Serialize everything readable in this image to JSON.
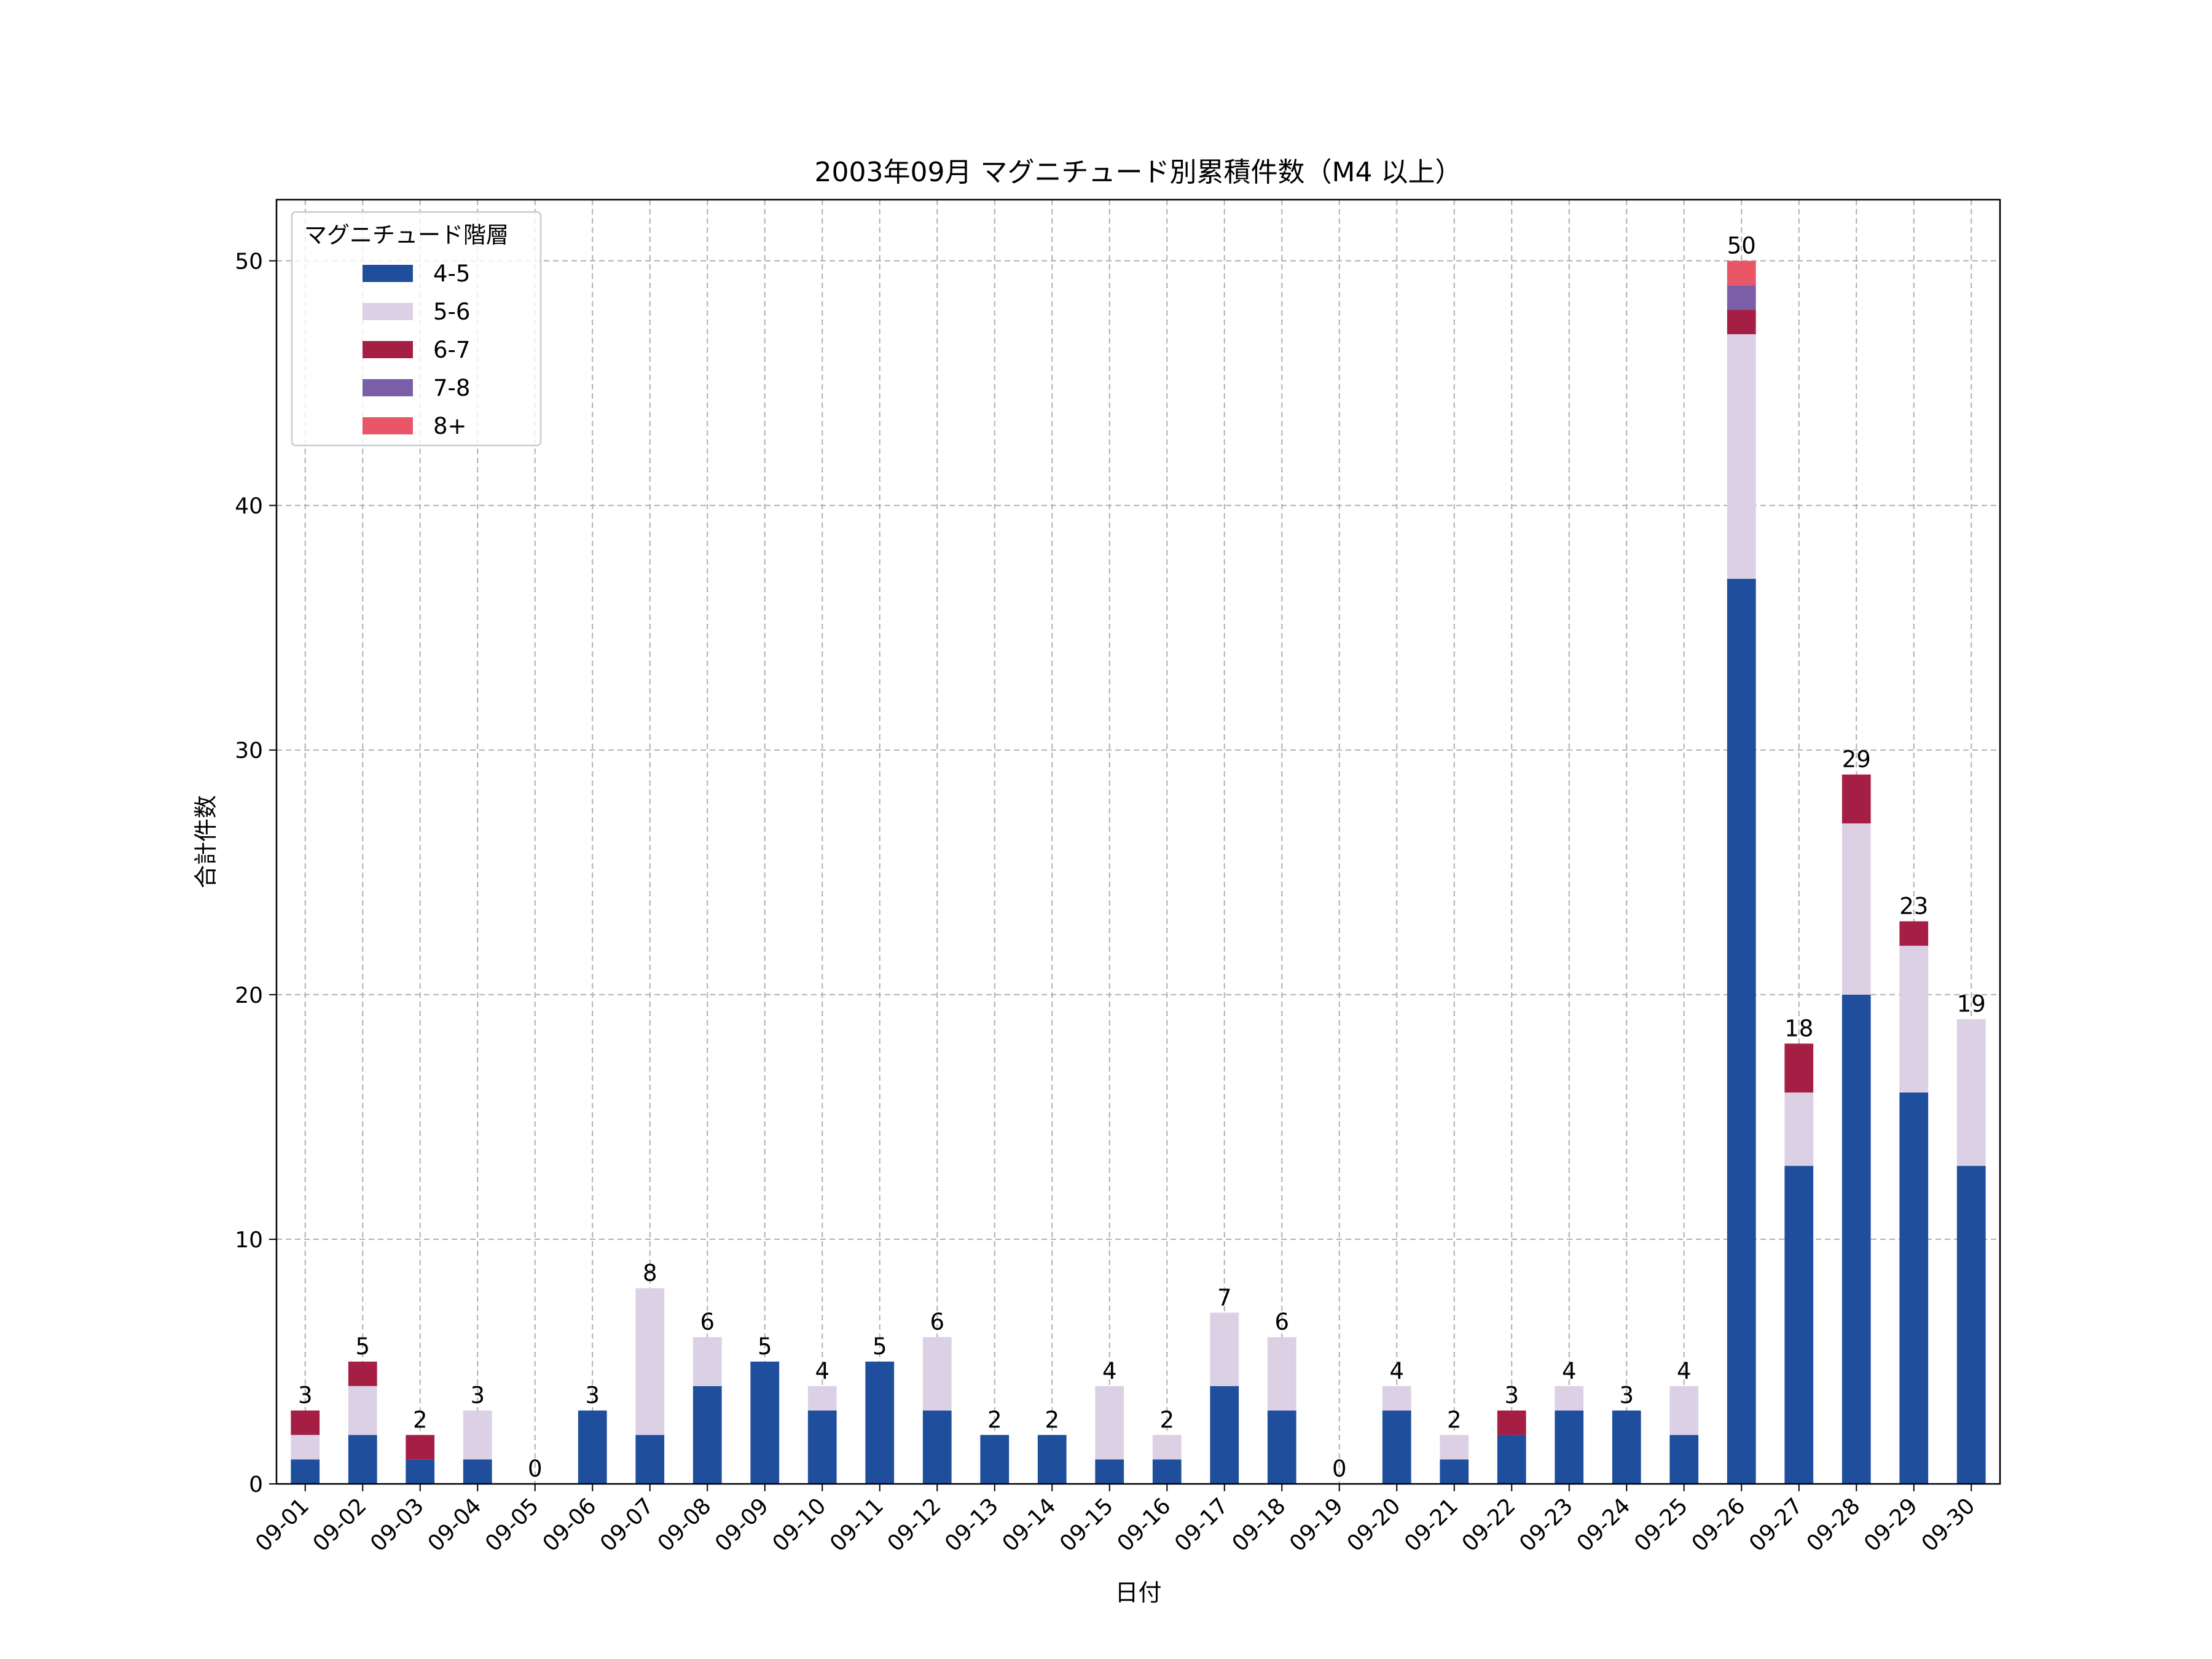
{
  "chart_data": {
    "type": "bar",
    "stacked": true,
    "title": "2003年09月 マグニチュード別累積件数（M4 以上）",
    "xlabel": "日付",
    "ylabel": "合計件数",
    "ylim": [
      0,
      52.5
    ],
    "yticks": [
      0,
      10,
      20,
      30,
      40,
      50
    ],
    "grid": true,
    "legend_title": "マグニチュード階層",
    "legend_position": "top-left",
    "categories": [
      "09-01",
      "09-02",
      "09-03",
      "09-04",
      "09-05",
      "09-06",
      "09-07",
      "09-08",
      "09-09",
      "09-10",
      "09-11",
      "09-12",
      "09-13",
      "09-14",
      "09-15",
      "09-16",
      "09-17",
      "09-18",
      "09-19",
      "09-20",
      "09-21",
      "09-22",
      "09-23",
      "09-24",
      "09-25",
      "09-26",
      "09-27",
      "09-28",
      "09-29",
      "09-30"
    ],
    "series": [
      {
        "name": "4-5",
        "color": "#1f4e9c",
        "values": [
          1,
          2,
          1,
          1,
          0,
          3,
          2,
          4,
          5,
          3,
          5,
          3,
          2,
          2,
          1,
          1,
          4,
          3,
          0,
          3,
          1,
          2,
          3,
          3,
          2,
          37,
          13,
          20,
          16,
          13
        ]
      },
      {
        "name": "5-6",
        "color": "#dcd0e4",
        "values": [
          1,
          2,
          0,
          2,
          0,
          0,
          6,
          2,
          0,
          1,
          0,
          3,
          0,
          0,
          3,
          1,
          3,
          3,
          0,
          1,
          1,
          0,
          1,
          0,
          2,
          10,
          3,
          7,
          6,
          6
        ]
      },
      {
        "name": "6-7",
        "color": "#a51f45",
        "values": [
          1,
          1,
          1,
          0,
          0,
          0,
          0,
          0,
          0,
          0,
          0,
          0,
          0,
          0,
          0,
          0,
          0,
          0,
          0,
          0,
          0,
          1,
          0,
          0,
          0,
          1,
          2,
          2,
          1,
          0
        ]
      },
      {
        "name": "7-8",
        "color": "#7a5ea8",
        "values": [
          0,
          0,
          0,
          0,
          0,
          0,
          0,
          0,
          0,
          0,
          0,
          0,
          0,
          0,
          0,
          0,
          0,
          0,
          0,
          0,
          0,
          0,
          0,
          0,
          0,
          1,
          0,
          0,
          0,
          0
        ]
      },
      {
        "name": "8+",
        "color": "#e85668",
        "values": [
          0,
          0,
          0,
          0,
          0,
          0,
          0,
          0,
          0,
          0,
          0,
          0,
          0,
          0,
          0,
          0,
          0,
          0,
          0,
          0,
          0,
          0,
          0,
          0,
          0,
          1,
          0,
          0,
          0,
          0
        ]
      }
    ],
    "totals": [
      3,
      5,
      2,
      3,
      0,
      3,
      8,
      6,
      5,
      4,
      5,
      6,
      2,
      2,
      4,
      2,
      7,
      6,
      0,
      4,
      2,
      3,
      4,
      3,
      4,
      50,
      18,
      29,
      23,
      19
    ]
  }
}
